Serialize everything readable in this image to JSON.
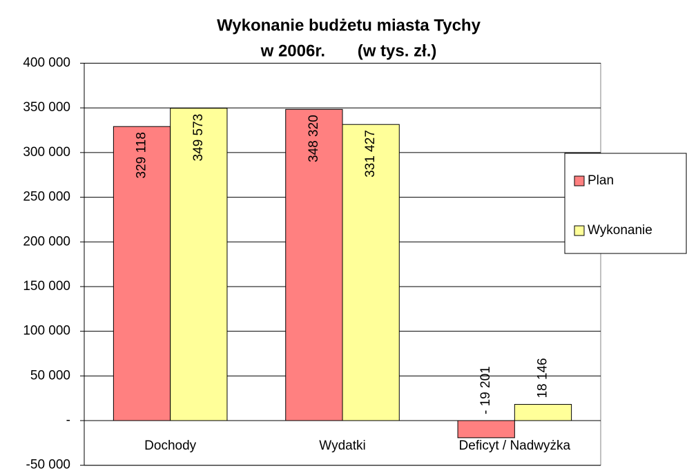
{
  "chart_data": {
    "type": "bar",
    "title": "Wykonanie budżetu miasta Tychy",
    "subtitle": "w 2006r.       (w tys. zł.)",
    "categories": [
      "Dochody",
      "Wydatki",
      "Deficyt / Nadwyżka"
    ],
    "series": [
      {
        "name": "Plan",
        "color": "#ff8080",
        "values": [
          329118,
          348320,
          -19201
        ],
        "value_labels": [
          "329 118",
          "348 320",
          "- 19 201"
        ]
      },
      {
        "name": "Wykonanie",
        "color": "#ffff99",
        "values": [
          349573,
          331427,
          18146
        ],
        "value_labels": [
          "349 573",
          "331 427",
          "18 146"
        ]
      }
    ],
    "ylim": [
      -50000,
      400000
    ],
    "yticks": [
      {
        "value": -50000,
        "label": "-50 000"
      },
      {
        "value": 0,
        "label": "-"
      },
      {
        "value": 50000,
        "label": "50 000"
      },
      {
        "value": 100000,
        "label": "100 000"
      },
      {
        "value": 150000,
        "label": "150 000"
      },
      {
        "value": 200000,
        "label": "200 000"
      },
      {
        "value": 250000,
        "label": "250 000"
      },
      {
        "value": 300000,
        "label": "300 000"
      },
      {
        "value": 350000,
        "label": "350 000"
      },
      {
        "value": 400000,
        "label": "400 000"
      }
    ],
    "grid": true,
    "legend": "right"
  }
}
